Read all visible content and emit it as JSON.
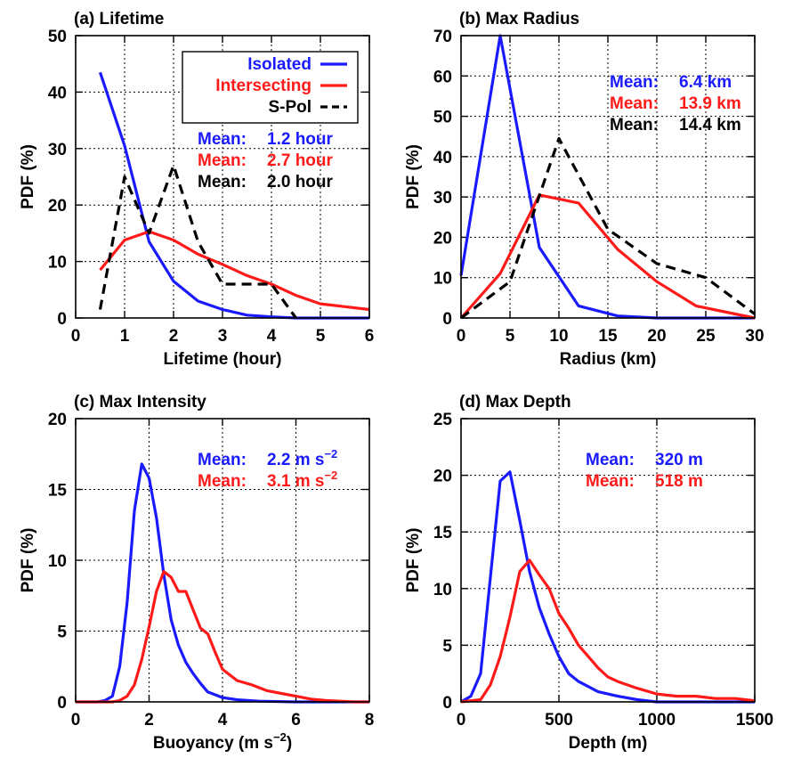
{
  "colors": {
    "Isolated": "#1a1aff",
    "Intersecting": "#ff1a1a",
    "S-Pol": "#000000"
  },
  "chart_data": [
    {
      "type": "line",
      "title": "(a) Lifetime",
      "xlabel": "Lifetime (hour)",
      "ylabel": "PDF (%)",
      "xlim": [
        0,
        6
      ],
      "ylim": [
        0,
        50
      ],
      "xticks": [
        0,
        1,
        2,
        3,
        4,
        5,
        6
      ],
      "yticks": [
        0,
        10,
        20,
        30,
        40,
        50
      ],
      "grid": true,
      "legend": {
        "position": "top-right",
        "entries": [
          "Isolated",
          "Intersecting",
          "S-Pol"
        ]
      },
      "series": [
        {
          "name": "Isolated",
          "style": "solid",
          "x": [
            0.5,
            1,
            1.5,
            2,
            2.5,
            3,
            3.5,
            4,
            4.5,
            5,
            5.5,
            6
          ],
          "y": [
            43.5,
            30.5,
            13.5,
            6.5,
            3,
            1.5,
            0.5,
            0.2,
            0,
            0,
            0,
            0
          ]
        },
        {
          "name": "Intersecting",
          "style": "solid",
          "x": [
            0.5,
            1,
            1.5,
            2,
            2.5,
            3,
            3.5,
            4,
            4.5,
            5,
            5.5,
            6
          ],
          "y": [
            8.5,
            13.8,
            15.3,
            13.8,
            11.3,
            9.5,
            7.5,
            6,
            4,
            2.5,
            2,
            1.5
          ]
        },
        {
          "name": "S-Pol",
          "style": "dashed",
          "x": [
            0.5,
            1,
            1.5,
            2,
            2.5,
            3,
            3.5,
            4,
            4.5
          ],
          "y": [
            1.5,
            25,
            15,
            27,
            13.5,
            6,
            6,
            6,
            0
          ]
        }
      ],
      "annotations": [
        {
          "label": "Mean:",
          "value": "1.2 hour",
          "series": "Isolated"
        },
        {
          "label": "Mean:",
          "value": "2.7 hour",
          "series": "Intersecting"
        },
        {
          "label": "Mean:",
          "value": "2.0 hour",
          "series": "S-Pol"
        }
      ]
    },
    {
      "type": "line",
      "title": "(b) Max Radius",
      "xlabel": "Radius (km)",
      "ylabel": "PDF (%)",
      "xlim": [
        0,
        30
      ],
      "ylim": [
        0,
        70
      ],
      "xticks": [
        0,
        5,
        10,
        15,
        20,
        25,
        30
      ],
      "yticks": [
        0,
        10,
        20,
        30,
        40,
        50,
        60,
        70
      ],
      "grid": true,
      "series": [
        {
          "name": "Isolated",
          "style": "solid",
          "x": [
            0,
            4,
            8,
            12,
            16,
            20,
            24,
            28,
            30
          ],
          "y": [
            10.5,
            70,
            17.5,
            3,
            0.5,
            0,
            0,
            0,
            0
          ]
        },
        {
          "name": "Intersecting",
          "style": "solid",
          "x": [
            0,
            4,
            8,
            12,
            16,
            20,
            24,
            28,
            30
          ],
          "y": [
            0,
            11,
            30.5,
            28.5,
            17,
            9,
            3,
            1,
            0
          ]
        },
        {
          "name": "S-Pol",
          "style": "dashed",
          "x": [
            0,
            5,
            10,
            15,
            20,
            25,
            30
          ],
          "y": [
            0,
            9,
            44.5,
            22,
            13.5,
            10,
            1
          ]
        }
      ],
      "annotations": [
        {
          "label": "Mean:",
          "value": "6.4 km",
          "series": "Isolated"
        },
        {
          "label": "Mean:",
          "value": "13.9 km",
          "series": "Intersecting"
        },
        {
          "label": "Mean:",
          "value": "14.4 km",
          "series": "S-Pol"
        }
      ]
    },
    {
      "type": "line",
      "title": "(c) Max Intensity",
      "xlabel": "Buoyancy (m s",
      "xlabel_sup": "−2",
      "xlabel_end": ")",
      "ylabel": "PDF (%)",
      "xlim": [
        0,
        8
      ],
      "ylim": [
        0,
        20
      ],
      "xticks": [
        0,
        2,
        4,
        6,
        8
      ],
      "yticks": [
        0,
        5,
        10,
        15,
        20
      ],
      "grid": true,
      "series": [
        {
          "name": "Isolated",
          "style": "solid",
          "x": [
            0,
            0.6,
            0.8,
            1.0,
            1.2,
            1.4,
            1.6,
            1.8,
            2.0,
            2.2,
            2.4,
            2.6,
            2.8,
            3.0,
            3.2,
            3.4,
            3.6,
            3.8,
            4.0,
            4.4,
            5.0,
            6.0,
            8.0
          ],
          "y": [
            0,
            0,
            0.1,
            0.4,
            2.5,
            7,
            13.5,
            16.8,
            15.8,
            13,
            9,
            5.8,
            4,
            2.8,
            2,
            1.3,
            0.7,
            0.5,
            0.3,
            0.15,
            0.05,
            0,
            0
          ]
        },
        {
          "name": "Intersecting",
          "style": "solid",
          "x": [
            0,
            1.0,
            1.2,
            1.4,
            1.6,
            1.8,
            2.0,
            2.2,
            2.4,
            2.6,
            2.8,
            3.0,
            3.2,
            3.4,
            3.6,
            3.8,
            4.0,
            4.4,
            4.8,
            5.2,
            5.6,
            6.0,
            6.4,
            6.8,
            7.2,
            7.6,
            8.0
          ],
          "y": [
            0,
            0,
            0.1,
            0.4,
            1.2,
            3,
            5.3,
            7.8,
            9.2,
            8.8,
            7.8,
            7.8,
            6.5,
            5.2,
            4.8,
            3.5,
            2.3,
            1.5,
            1.2,
            0.8,
            0.6,
            0.4,
            0.2,
            0.1,
            0.05,
            0,
            0
          ]
        }
      ],
      "annotations": [
        {
          "label": "Mean:",
          "value": "2.2 m s",
          "sup": "−2",
          "series": "Isolated"
        },
        {
          "label": "Mean:",
          "value": "3.1 m s",
          "sup": "−2",
          "series": "Intersecting"
        }
      ]
    },
    {
      "type": "line",
      "title": "(d) Max Depth",
      "xlabel": "Depth (m)",
      "ylabel": "PDF (%)",
      "xlim": [
        0,
        1500
      ],
      "ylim": [
        0,
        25
      ],
      "xticks": [
        0,
        500,
        1000,
        1500
      ],
      "yticks": [
        0,
        5,
        10,
        15,
        20,
        25
      ],
      "grid": true,
      "series": [
        {
          "name": "Isolated",
          "style": "solid",
          "x": [
            0,
            50,
            100,
            150,
            200,
            250,
            300,
            350,
            400,
            450,
            500,
            550,
            600,
            700,
            800,
            900,
            1000,
            1500
          ],
          "y": [
            0,
            0.5,
            2.5,
            11,
            19.5,
            20.3,
            16,
            11.5,
            8.3,
            6,
            4,
            2.5,
            1.8,
            0.9,
            0.5,
            0.2,
            0,
            0
          ]
        },
        {
          "name": "Intersecting",
          "style": "solid",
          "x": [
            0,
            100,
            150,
            200,
            250,
            300,
            350,
            400,
            450,
            500,
            550,
            600,
            650,
            700,
            750,
            800,
            900,
            1000,
            1100,
            1200,
            1300,
            1400,
            1500
          ],
          "y": [
            0,
            0.2,
            1.5,
            4,
            7.5,
            11.5,
            12.5,
            11.2,
            10,
            7.8,
            6.5,
            5,
            4,
            3,
            2.2,
            1.8,
            1.2,
            0.7,
            0.5,
            0.5,
            0.3,
            0.3,
            0.1
          ]
        }
      ],
      "annotations": [
        {
          "label": "Mean:",
          "value": "320 m",
          "series": "Isolated"
        },
        {
          "label": "Mean:",
          "value": "518 m",
          "series": "Intersecting"
        }
      ]
    }
  ]
}
